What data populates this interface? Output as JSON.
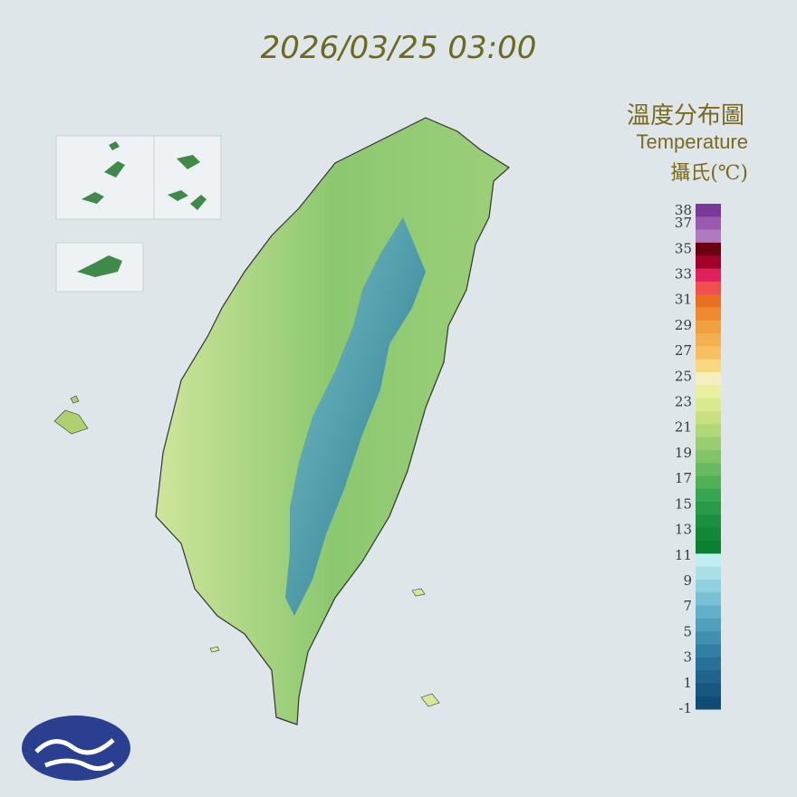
{
  "timestamp": "2026/03/25 03:00",
  "legend": {
    "title": "溫度分布圖",
    "subtitle": "Temperature",
    "unit": "攝氏(℃)",
    "ticks": [
      38,
      37,
      35,
      33,
      31,
      29,
      27,
      25,
      23,
      21,
      19,
      17,
      15,
      13,
      11,
      9,
      7,
      5,
      3,
      1,
      -1
    ],
    "colors": [
      "#7b3a9a",
      "#9a5ab0",
      "#b07ac0",
      "#6a0010",
      "#a0002a",
      "#e0205a",
      "#f05050",
      "#e87020",
      "#f08a30",
      "#f0a040",
      "#f4b050",
      "#f6c060",
      "#f8d880",
      "#f4eec0",
      "#e8f0a0",
      "#d8ea90",
      "#c8e080",
      "#b0d878",
      "#98ce70",
      "#80c468",
      "#68ba60",
      "#50b058",
      "#38a550",
      "#289a48",
      "#1a9040",
      "#108838",
      "#0a8030",
      "#c0eef0",
      "#a8e0e8",
      "#90d0e0",
      "#78c0d4",
      "#60b0c8",
      "#50a0bc",
      "#4090b0",
      "#3080a4",
      "#287098",
      "#20648c",
      "#185880",
      "#104c74"
    ]
  }
}
